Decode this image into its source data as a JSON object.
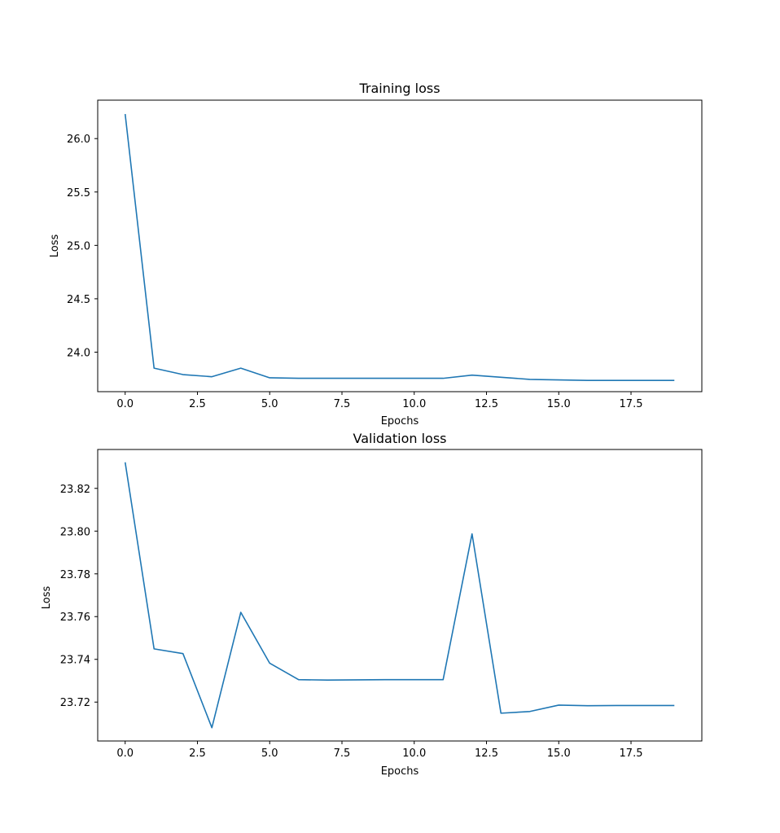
{
  "chart_data": [
    {
      "type": "line",
      "title": "Training loss",
      "xlabel": "Epochs",
      "ylabel": "Loss",
      "xlim": [
        -0.95,
        19.95
      ],
      "ylim": [
        23.63,
        26.36
      ],
      "xticks": [
        0.0,
        2.5,
        5.0,
        7.5,
        10.0,
        12.5,
        15.0,
        17.5
      ],
      "xtick_labels": [
        "0.0",
        "2.5",
        "5.0",
        "7.5",
        "10.0",
        "12.5",
        "15.0",
        "17.5"
      ],
      "yticks": [
        24.0,
        24.5,
        25.0,
        25.5,
        26.0
      ],
      "ytick_labels": [
        "24.0",
        "24.5",
        "25.0",
        "25.5",
        "26.0"
      ],
      "grid": false,
      "color": "#1f77b4",
      "x": [
        0,
        1,
        2,
        3,
        4,
        5,
        6,
        7,
        8,
        9,
        10,
        11,
        12,
        13,
        14,
        15,
        16,
        17,
        18,
        19
      ],
      "y": [
        26.23,
        23.85,
        23.79,
        23.77,
        23.85,
        23.76,
        23.755,
        23.755,
        23.755,
        23.755,
        23.755,
        23.755,
        23.785,
        23.765,
        23.745,
        23.74,
        23.735,
        23.735,
        23.735,
        23.735
      ]
    },
    {
      "type": "line",
      "title": "Validation loss",
      "xlabel": "Epochs",
      "ylabel": "Loss",
      "xlim": [
        -0.95,
        19.95
      ],
      "ylim": [
        23.7018,
        23.8382
      ],
      "xticks": [
        0.0,
        2.5,
        5.0,
        7.5,
        10.0,
        12.5,
        15.0,
        17.5
      ],
      "xtick_labels": [
        "0.0",
        "2.5",
        "5.0",
        "7.5",
        "10.0",
        "12.5",
        "15.0",
        "17.5"
      ],
      "yticks": [
        23.72,
        23.74,
        23.76,
        23.78,
        23.8,
        23.82
      ],
      "ytick_labels": [
        "23.72",
        "23.74",
        "23.76",
        "23.78",
        "23.80",
        "23.82"
      ],
      "grid": false,
      "color": "#1f77b4",
      "x": [
        0,
        1,
        2,
        3,
        4,
        5,
        6,
        7,
        8,
        9,
        10,
        11,
        12,
        13,
        14,
        15,
        16,
        17,
        18,
        19
      ],
      "y": [
        23.8322,
        23.7449,
        23.7427,
        23.708,
        23.762,
        23.7382,
        23.7305,
        23.7303,
        23.7304,
        23.7305,
        23.7305,
        23.7305,
        23.7987,
        23.7148,
        23.7156,
        23.7186,
        23.7183,
        23.7184,
        23.7184,
        23.7184
      ]
    }
  ]
}
